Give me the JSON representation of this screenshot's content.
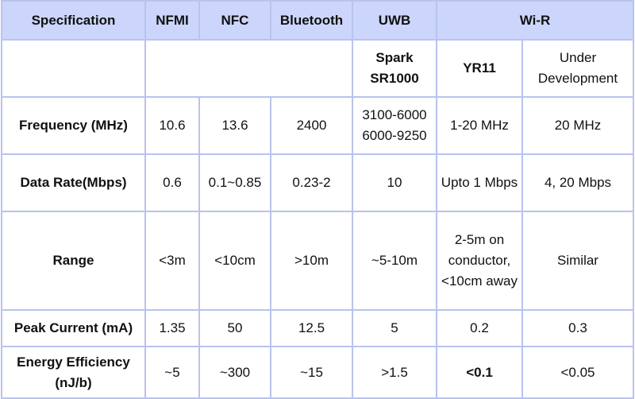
{
  "header": {
    "specification": "Specification",
    "nfmi": "NFMI",
    "nfc": "NFC",
    "bluetooth": "Bluetooth",
    "uwb": "UWB",
    "wir": "Wi-R"
  },
  "subheader": {
    "uwb": "Spark SR1000",
    "wir_yr11": "YR11",
    "wir_under": "Under Development"
  },
  "rows": {
    "frequency": {
      "label": "Frequency (MHz)",
      "nfmi": "10.6",
      "nfc": "13.6",
      "bluetooth": "2400",
      "uwb": "3100-6000 6000-9250",
      "wir_yr11": "1-20 MHz",
      "wir_under": "20 MHz"
    },
    "data_rate": {
      "label": "Data Rate(Mbps)",
      "nfmi": "0.6",
      "nfc": "0.1~0.85",
      "bluetooth": "0.23-2",
      "uwb": "10",
      "wir_yr11": "Upto 1 Mbps",
      "wir_under": "4, 20 Mbps"
    },
    "range": {
      "label": "Range",
      "nfmi": "<3m",
      "nfc": "<10cm",
      "bluetooth": ">10m",
      "uwb": "~5-10m",
      "wir_yr11": "2-5m on conductor, <10cm away",
      "wir_under": "Similar"
    },
    "peak_current": {
      "label": "Peak Current (mA)",
      "nfmi": "1.35",
      "nfc": "50",
      "bluetooth": "12.5",
      "uwb": "5",
      "wir_yr11": "0.2",
      "wir_under": "0.3"
    },
    "energy_efficiency": {
      "label": "Energy Efficiency (nJ/b)",
      "nfmi": "~5",
      "nfc": "~300",
      "bluetooth": "~15",
      "uwb": ">1.5",
      "wir_yr11": "<0.1",
      "wir_under": "<0.05"
    }
  },
  "colors": {
    "header_bg": "#ccd5fb",
    "border": "#b9c3ee",
    "text": "#111111"
  }
}
